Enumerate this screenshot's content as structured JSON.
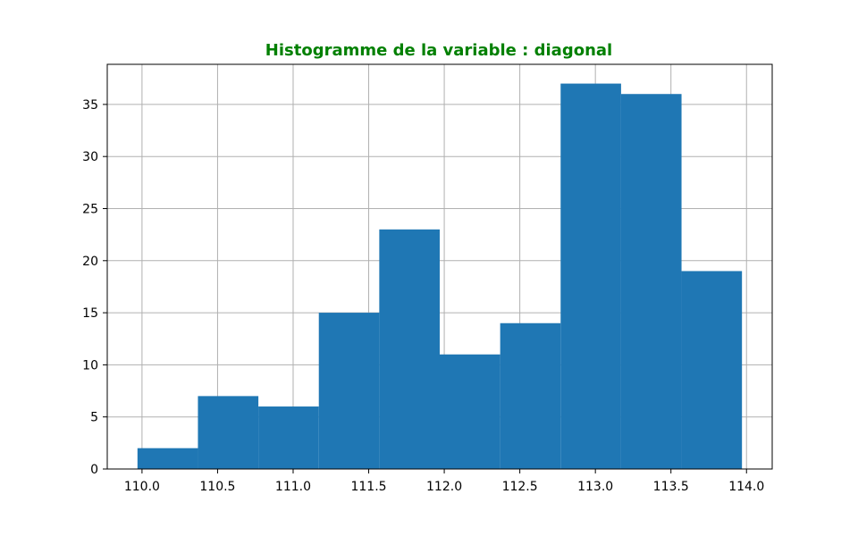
{
  "chart_data": {
    "type": "bar",
    "title": "Histogramme de la variable : diagonal",
    "title_color": "#008000",
    "bar_color": "#1f77b4",
    "xlabel": "",
    "ylabel": "",
    "bins": [
      {
        "start": 109.97,
        "end": 110.37,
        "count": 2
      },
      {
        "start": 110.37,
        "end": 110.77,
        "count": 7
      },
      {
        "start": 110.77,
        "end": 111.17,
        "count": 6
      },
      {
        "start": 111.17,
        "end": 111.57,
        "count": 15
      },
      {
        "start": 111.57,
        "end": 111.97,
        "count": 23
      },
      {
        "start": 111.97,
        "end": 112.37,
        "count": 11
      },
      {
        "start": 112.37,
        "end": 112.77,
        "count": 14
      },
      {
        "start": 112.77,
        "end": 113.17,
        "count": 37
      },
      {
        "start": 113.17,
        "end": 113.57,
        "count": 36
      },
      {
        "start": 113.57,
        "end": 113.97,
        "count": 19
      }
    ],
    "xlim": [
      109.77,
      114.17
    ],
    "ylim": [
      0,
      38.85
    ],
    "x_ticks": [
      110.0,
      110.5,
      111.0,
      111.5,
      112.0,
      112.5,
      113.0,
      113.5,
      114.0
    ],
    "x_tick_labels": [
      "110.0",
      "110.5",
      "111.0",
      "111.5",
      "112.0",
      "112.5",
      "113.0",
      "113.5",
      "114.0"
    ],
    "y_ticks": [
      0,
      5,
      10,
      15,
      20,
      25,
      30,
      35
    ],
    "y_tick_labels": [
      "0",
      "5",
      "10",
      "15",
      "20",
      "25",
      "30",
      "35"
    ],
    "grid": true,
    "legend": "none"
  }
}
